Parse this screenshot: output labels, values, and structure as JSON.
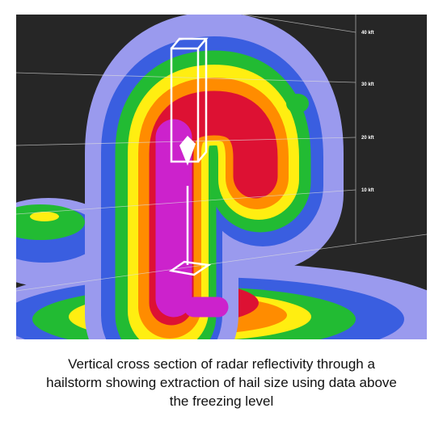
{
  "figure": {
    "altitude_labels": [
      "40 kft",
      "30 kft",
      "20 kft",
      "10 kft"
    ],
    "caption": [
      "Vertical cross section of radar reflectivity through a",
      "hailstorm showing extraction of hail size using data above",
      "the freezing level"
    ]
  }
}
